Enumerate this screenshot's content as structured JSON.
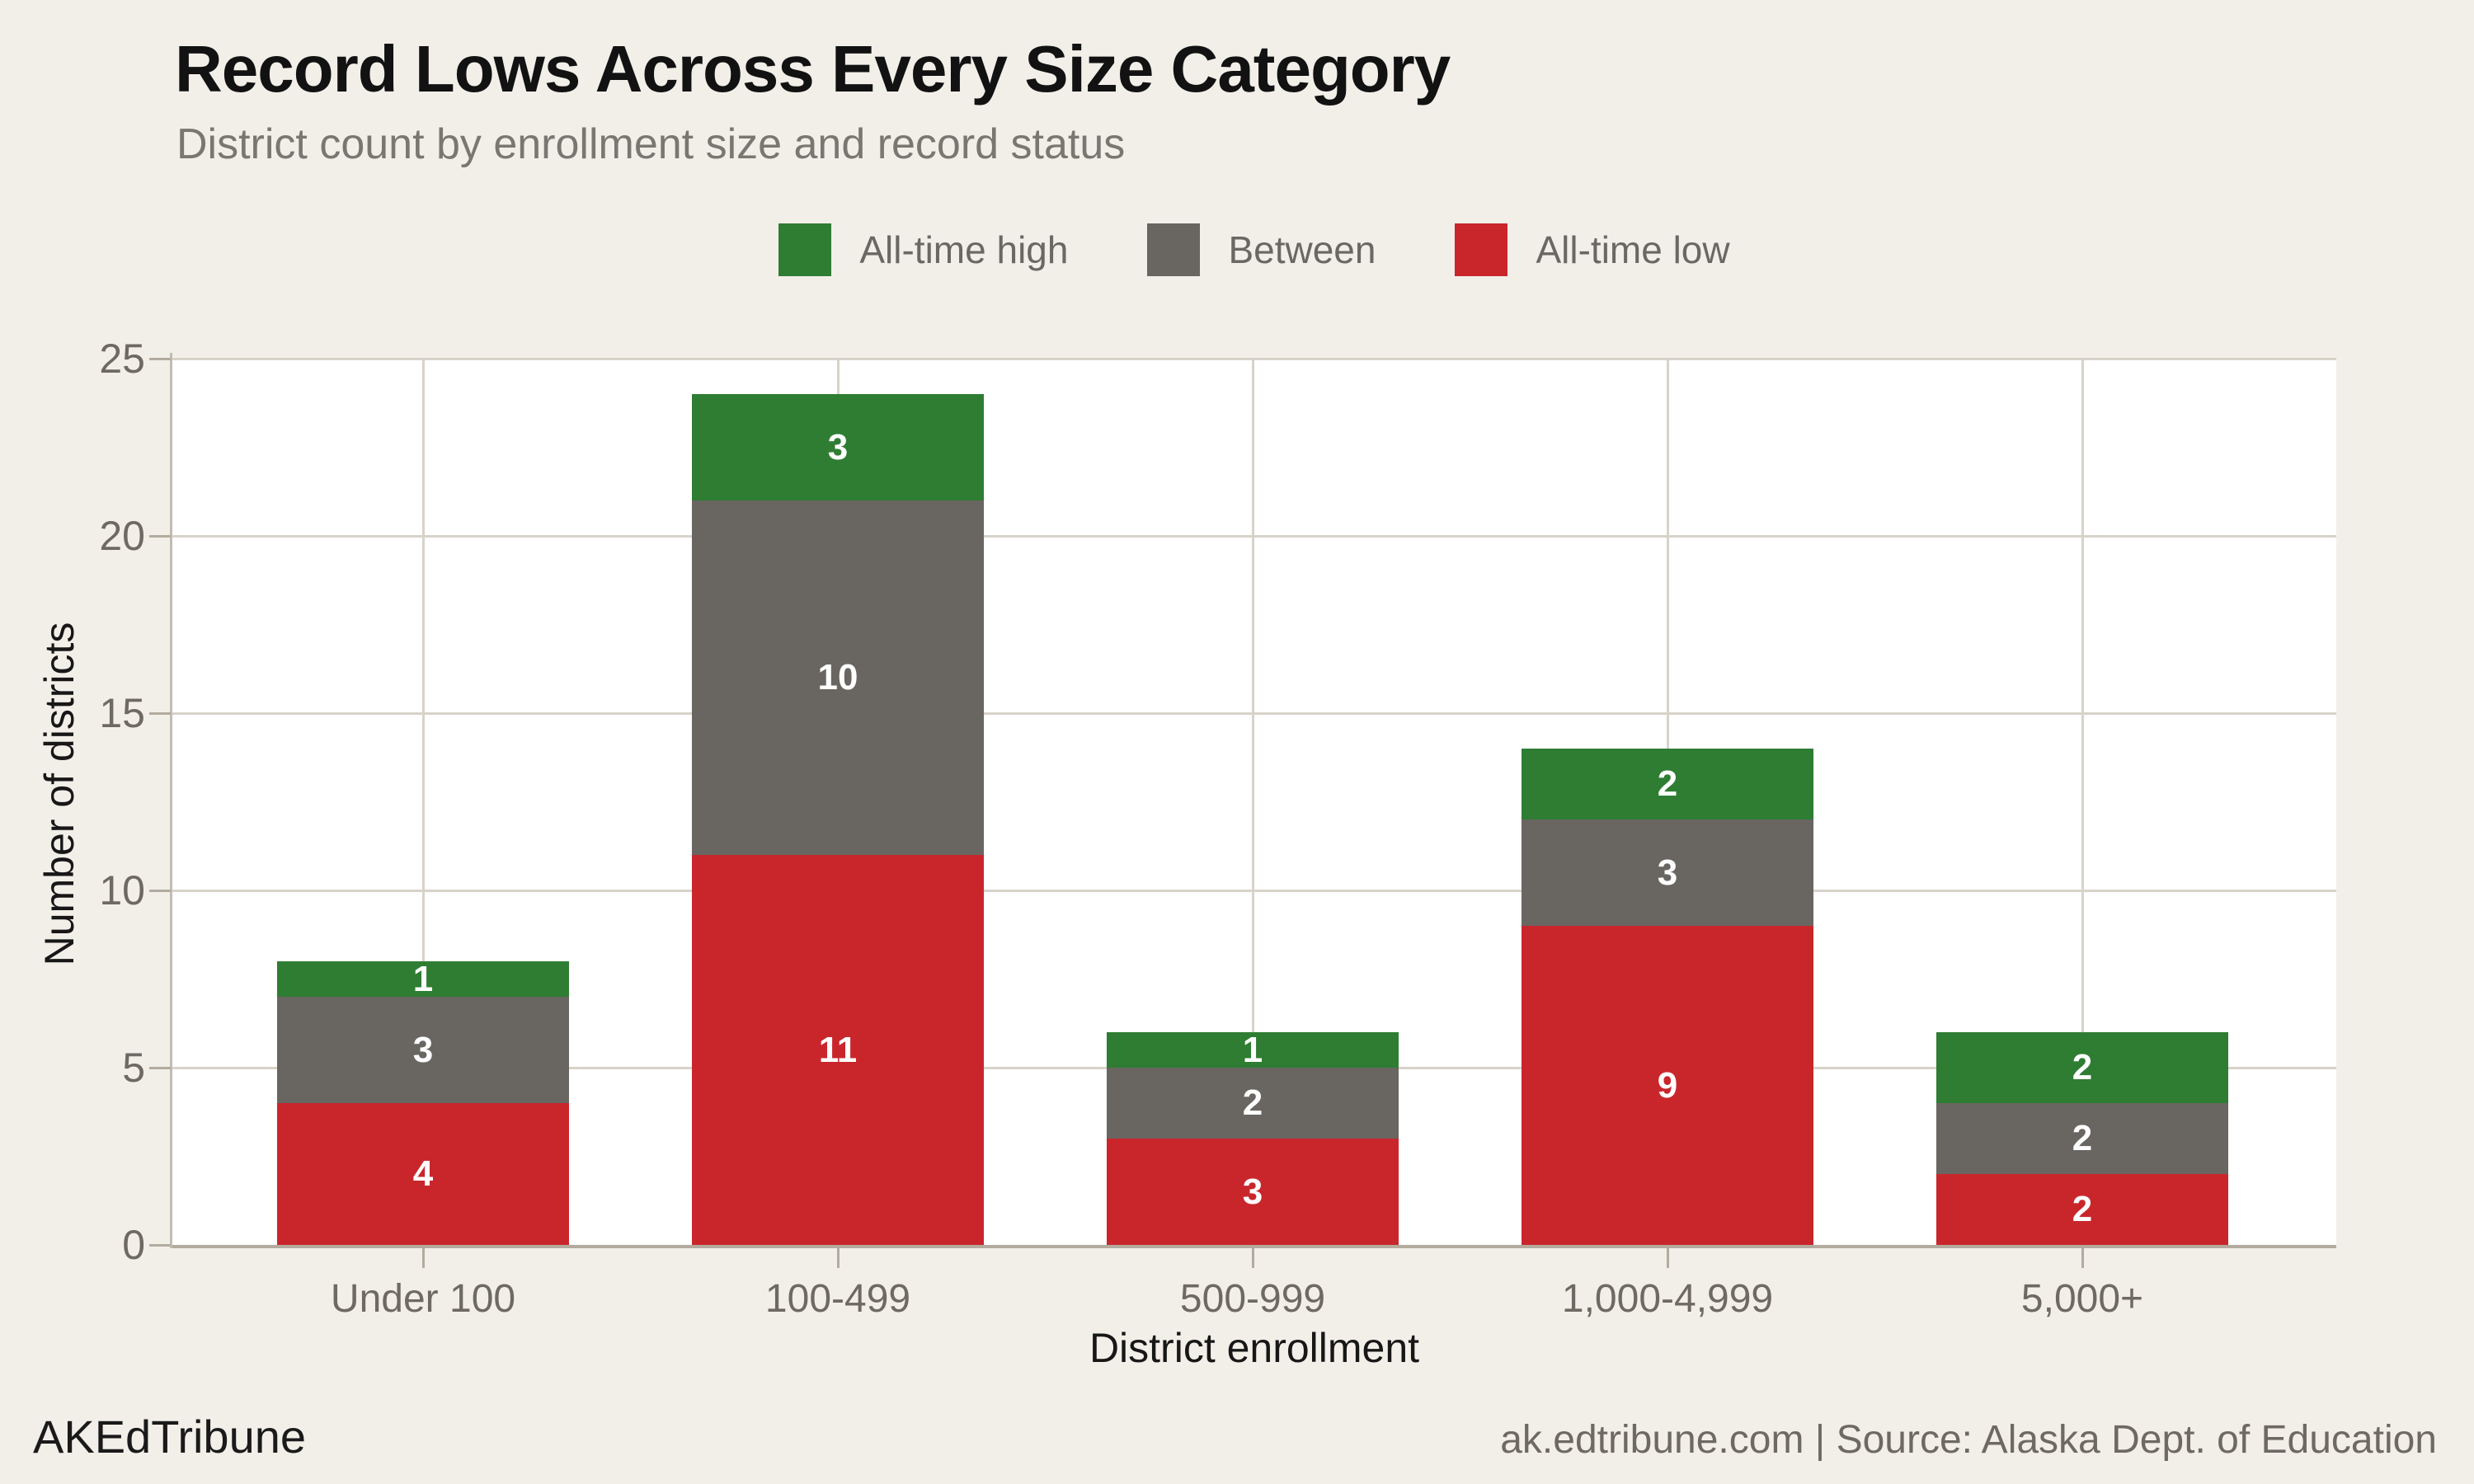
{
  "header": {
    "title": "Record Lows Across Every Size Category",
    "subtitle": "District count by enrollment size and record status"
  },
  "chart_data": {
    "type": "bar",
    "stacked": true,
    "categories": [
      "Under 100",
      "100-499",
      "500-999",
      "1,000-4,999",
      "5,000+"
    ],
    "series": [
      {
        "name": "All-time high",
        "color": "#2e7d32",
        "values": [
          1,
          3,
          1,
          2,
          2
        ]
      },
      {
        "name": "Between",
        "color": "#696561",
        "values": [
          3,
          10,
          2,
          3,
          2
        ]
      },
      {
        "name": "All-time low",
        "color": "#c9262c",
        "values": [
          4,
          11,
          3,
          9,
          2
        ]
      }
    ],
    "xlabel": "District enrollment",
    "ylabel": "Number of districts",
    "ylim": [
      0,
      25
    ],
    "yticks": [
      0,
      5,
      10,
      15,
      20,
      25
    ],
    "legend_position": "top",
    "grid": true,
    "bar_label_color": "#ffffff"
  },
  "footer": {
    "brand": "AKEdTribune",
    "attribution": "ak.edtribune.com | Source: Alaska Dept. of Education"
  },
  "colors": {
    "background": "#f2efe9",
    "plot_background": "#ffffff",
    "gridline": "#d8d3ca",
    "axis_line": "#b3ab9e",
    "tick_label": "#6e6a63"
  }
}
